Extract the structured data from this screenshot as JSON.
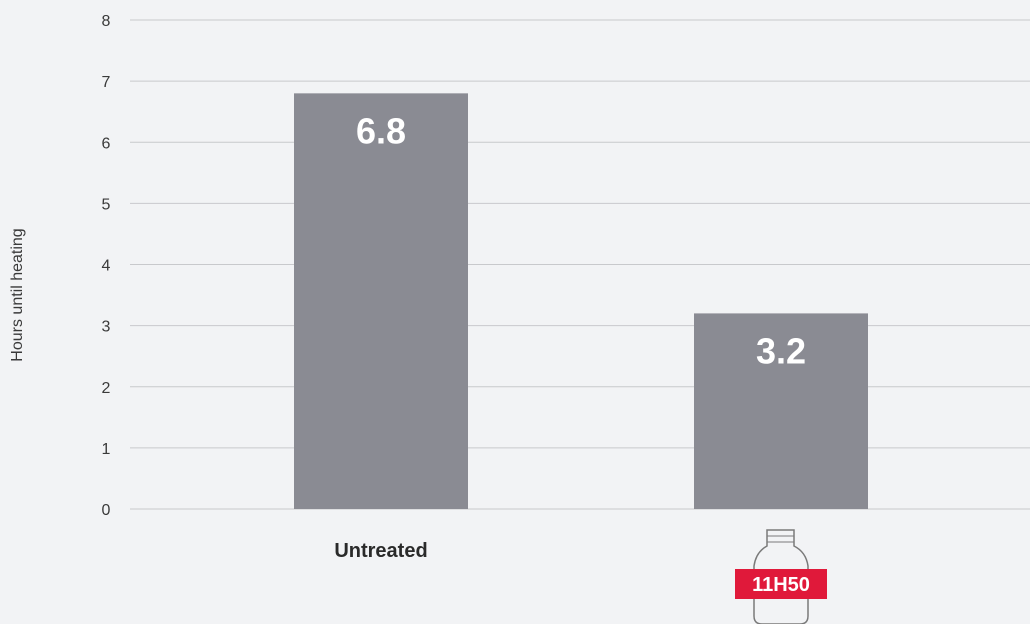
{
  "chart_data": {
    "type": "bar",
    "categories": [
      "Untreated",
      "11H50"
    ],
    "values": [
      6.8,
      3.2
    ],
    "value_labels": [
      "6.8",
      "3.2"
    ],
    "title": "",
    "xlabel": "",
    "ylabel": "Hours until heating",
    "ylim": [
      0,
      8
    ],
    "yticks": [
      "0",
      "1",
      "2",
      "3",
      "4",
      "5",
      "6",
      "7",
      "8"
    ],
    "grid": true,
    "legend": "none"
  },
  "product": {
    "icon": "bottle-icon",
    "label": "11H50"
  },
  "colors": {
    "bar": "#8a8b93",
    "grid": "#c8c9cc",
    "background": "#f2f3f5",
    "product_tag": "#e0193a",
    "bottle_outline": "#7a7a7a"
  }
}
